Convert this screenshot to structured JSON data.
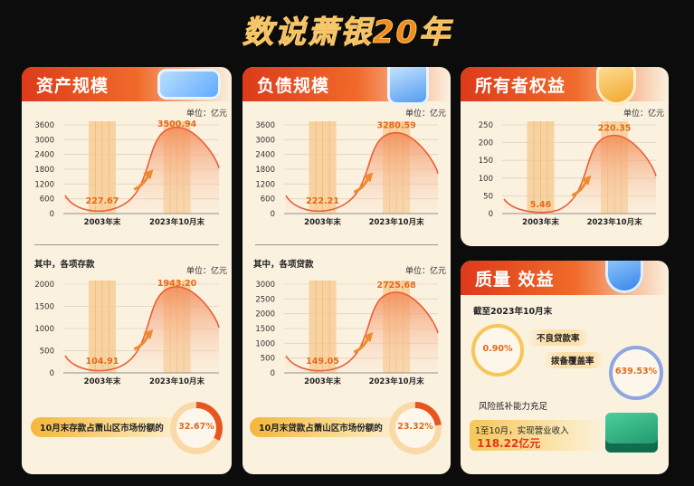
{
  "page_title": "数说萧银20年",
  "colors": {
    "accent": "#e8481f",
    "orange": "#f38b1a",
    "panel": "#fbf1df",
    "curve": "#e9603a"
  },
  "icons": [
    "card-icon",
    "clipboard-icon",
    "shield-yen-icon",
    "shield-yen-icon"
  ],
  "assets": {
    "title": "资产规模",
    "unit": "单位：亿元",
    "subtitle": "其中，各项存款",
    "share_label": "10月末存款占萧山区市场份额的",
    "share_value": "32.67%"
  },
  "liabilities": {
    "title": "负债规模",
    "unit": "单位：亿元",
    "subtitle": "其中，各项贷款",
    "share_label": "10月末贷款占萧山区市场份额的",
    "share_value": "23.32%"
  },
  "equity": {
    "title": "所有者权益",
    "unit": "单位：亿元"
  },
  "quality": {
    "title": "质量  效益",
    "date": "截至2023年10月末",
    "npl_label": "不良贷款率",
    "npl_value": "0.90%",
    "coverage_label": "拨备覆盖率",
    "coverage_value": "639.53%",
    "risk_text": "风险抵补能力充足",
    "revenue_label": "1至10月，实现营业收入",
    "revenue_value": "118.22亿元"
  },
  "chart_data": [
    {
      "type": "bar",
      "title": "资产规模",
      "ylabel": "单位：亿元",
      "categories": [
        "2003年末",
        "2023年10月末"
      ],
      "values": [
        227.67,
        3500.94
      ],
      "value_labels": [
        "227.67",
        "3500.94"
      ],
      "yticks": [
        0,
        600,
        1200,
        1800,
        2400,
        3000,
        3600
      ],
      "ylim": [
        0,
        3600
      ]
    },
    {
      "type": "bar",
      "title": "其中，各项存款",
      "ylabel": "单位：亿元",
      "categories": [
        "2003年末",
        "2023年10月末"
      ],
      "values": [
        104.91,
        1943.2
      ],
      "value_labels": [
        "104.91",
        "1943.20"
      ],
      "yticks": [
        0,
        500,
        1000,
        1500,
        2000
      ],
      "ylim": [
        0,
        2000
      ]
    },
    {
      "type": "bar",
      "title": "负债规模",
      "ylabel": "单位：亿元",
      "categories": [
        "2003年末",
        "2023年10月末"
      ],
      "values": [
        222.21,
        3280.59
      ],
      "value_labels": [
        "222.21",
        "3280.59"
      ],
      "yticks": [
        0,
        600,
        1200,
        1800,
        2400,
        3000,
        3600
      ],
      "ylim": [
        0,
        3600
      ]
    },
    {
      "type": "bar",
      "title": "其中，各项贷款",
      "ylabel": "单位：亿元",
      "categories": [
        "2003年末",
        "2023年10月末"
      ],
      "values": [
        149.05,
        2725.68
      ],
      "value_labels": [
        "149.05",
        "2725.68"
      ],
      "yticks": [
        0,
        500,
        1000,
        1500,
        2000,
        2500,
        3000
      ],
      "ylim": [
        0,
        3000
      ]
    },
    {
      "type": "bar",
      "title": "所有者权益",
      "ylabel": "单位：亿元",
      "categories": [
        "2003年末",
        "2023年10月末"
      ],
      "values": [
        5.46,
        220.35
      ],
      "value_labels": [
        "5.46",
        "220.35"
      ],
      "yticks": [
        0,
        50,
        100,
        150,
        200,
        250
      ],
      "ylim": [
        0,
        250
      ]
    }
  ]
}
